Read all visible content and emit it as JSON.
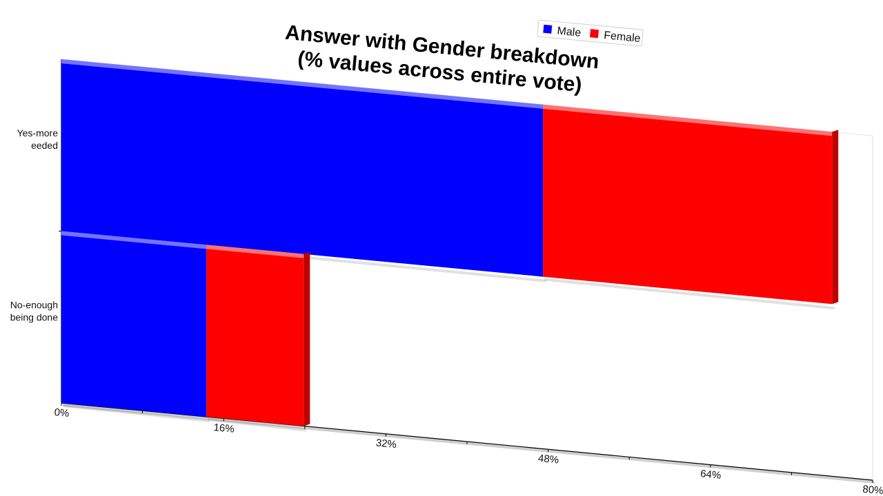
{
  "chart_data": {
    "type": "bar",
    "orientation": "horizontal",
    "stacked": true,
    "title_lines": [
      "Answer with Gender breakdown",
      "(% values across entire vote)"
    ],
    "categories": [
      {
        "id": "yes",
        "lines": [
          "Yes-more",
          "eeded"
        ]
      },
      {
        "id": "no",
        "lines": [
          "No-enough",
          "being done"
        ]
      }
    ],
    "series": [
      {
        "name": "Male",
        "color": "#0000ff",
        "values": [
          47.5,
          14.3
        ]
      },
      {
        "name": "Female",
        "color": "#ff0000",
        "values": [
          28.5,
          9.6
        ]
      }
    ],
    "xaxis": {
      "ticks": [
        "0%",
        "16%",
        "32%",
        "48%",
        "64%",
        "80%"
      ],
      "range": [
        0,
        80
      ]
    },
    "legend_position": "top-right",
    "side_colors": {
      "Male": "#00008f",
      "Female": "#bf0000"
    }
  }
}
